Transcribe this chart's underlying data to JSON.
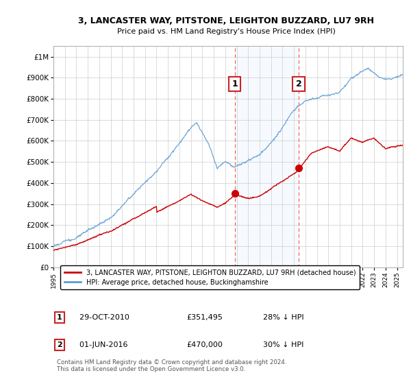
{
  "title": "3, LANCASTER WAY, PITSTONE, LEIGHTON BUZZARD, LU7 9RH",
  "subtitle": "Price paid vs. HM Land Registry's House Price Index (HPI)",
  "ylim": [
    0,
    1050000
  ],
  "yticks": [
    0,
    100000,
    200000,
    300000,
    400000,
    500000,
    600000,
    700000,
    800000,
    900000,
    1000000
  ],
  "ytick_labels": [
    "£0",
    "£100K",
    "£200K",
    "£300K",
    "£400K",
    "£500K",
    "£600K",
    "£700K",
    "£800K",
    "£900K",
    "£1M"
  ],
  "hpi_color": "#5b9bd5",
  "price_color": "#cc0000",
  "sale1_date": "29-OCT-2010",
  "sale1_price": 351495,
  "sale1_label": "£351,495",
  "sale1_hpi_text": "28% ↓ HPI",
  "sale2_date": "01-JUN-2016",
  "sale2_price": 470000,
  "sale2_label": "£470,000",
  "sale2_hpi_text": "30% ↓ HPI",
  "legend_house": "3, LANCASTER WAY, PITSTONE, LEIGHTON BUZZARD, LU7 9RH (detached house)",
  "legend_hpi": "HPI: Average price, detached house, Buckinghamshire",
  "footer": "Contains HM Land Registry data © Crown copyright and database right 2024.\nThis data is licensed under the Open Government Licence v3.0.",
  "bg_color": "#ffffff",
  "grid_color": "#cccccc",
  "highlight_bg": "#ddeeff",
  "sale1_x": 2010.83,
  "sale2_x": 2016.42,
  "marker_y": 870000,
  "xlim_left": 1995,
  "xlim_right": 2025.5
}
